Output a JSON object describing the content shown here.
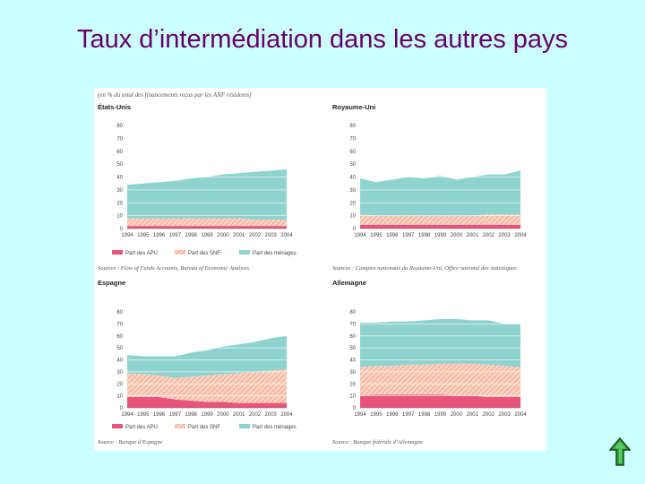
{
  "slide": {
    "title": "Taux d’intermédiation dans les autres pays"
  },
  "figure": {
    "subtitle": "(en % du total des financements reçus par les ANF résidents)"
  },
  "colors": {
    "apu": "#e8547a",
    "snf_fill": "#fbd3c2",
    "snf_hatch": "#e8896a",
    "menages": "#8ed3d0",
    "background": "#ccffff",
    "title": "#660066"
  },
  "legend": {
    "apu": "Part des APU",
    "snf": "Part des SNF",
    "menages": "Part des ménages"
  },
  "chart_data": [
    {
      "type": "area",
      "title": "États-Unis",
      "x": [
        "1994",
        "1995",
        "1996",
        "1997",
        "1998",
        "1999",
        "2000",
        "2001",
        "2002",
        "2003",
        "2004"
      ],
      "ylim": [
        0,
        80
      ],
      "yticks": [
        0,
        10,
        20,
        30,
        40,
        50,
        60,
        70,
        80
      ],
      "stacked": true,
      "series": [
        {
          "name": "Part des APU",
          "values": [
            2,
            2,
            2,
            2,
            2,
            2,
            2,
            2,
            2,
            2,
            2
          ]
        },
        {
          "name": "Part des SNF",
          "values": [
            6,
            6,
            6,
            6,
            6,
            6,
            6,
            6,
            5,
            5,
            5
          ]
        },
        {
          "name": "Part des ménages",
          "values": [
            26,
            27,
            28,
            29,
            31,
            32,
            34,
            35,
            37,
            38,
            39
          ]
        }
      ],
      "grid": true,
      "source": "Sources : Flow of Funds Accounts, Bureau of Economic Analysis"
    },
    {
      "type": "area",
      "title": "Royaume-Uni",
      "x": [
        "1994",
        "1995",
        "1996",
        "1997",
        "1998",
        "1999",
        "2000",
        "2001",
        "2002",
        "2003",
        "2004"
      ],
      "ylim": [
        0,
        80
      ],
      "yticks": [
        0,
        10,
        20,
        30,
        40,
        50,
        60,
        70,
        80
      ],
      "stacked": true,
      "series": [
        {
          "name": "Part des APU",
          "values": [
            3,
            3,
            3,
            3,
            3,
            3,
            3,
            3,
            3,
            3,
            3
          ]
        },
        {
          "name": "Part des SNF",
          "values": [
            8,
            7,
            7,
            7,
            7,
            7,
            7,
            7,
            8,
            8,
            8
          ]
        },
        {
          "name": "Part des ménages",
          "values": [
            28,
            26,
            28,
            30,
            29,
            31,
            28,
            30,
            31,
            31,
            34
          ]
        }
      ],
      "grid": true,
      "source": "Sources : Comptes nationaux du Royaume-Uni, Office national des statistiques"
    },
    {
      "type": "area",
      "title": "Espagne",
      "x": [
        "1994",
        "1995",
        "1996",
        "1997",
        "1998",
        "1999",
        "2000",
        "2001",
        "2002",
        "2003",
        "2004"
      ],
      "ylim": [
        0,
        80
      ],
      "yticks": [
        0,
        10,
        20,
        30,
        40,
        50,
        60,
        70,
        80
      ],
      "stacked": true,
      "series": [
        {
          "name": "Part des APU",
          "values": [
            9,
            9,
            9,
            7,
            6,
            5,
            5,
            4,
            4,
            4,
            4
          ]
        },
        {
          "name": "Part des SNF",
          "values": [
            20,
            19,
            18,
            18,
            20,
            22,
            23,
            25,
            26,
            27,
            28
          ]
        },
        {
          "name": "Part des ménages",
          "values": [
            15,
            15,
            16,
            18,
            20,
            21,
            23,
            24,
            25,
            27,
            28
          ]
        }
      ],
      "grid": true,
      "source": "Source : Banque d’Espagne"
    },
    {
      "type": "area",
      "title": "Allemagne",
      "x": [
        "1994",
        "1995",
        "1996",
        "1997",
        "1998",
        "1999",
        "2000",
        "2001",
        "2002",
        "2003",
        "2004"
      ],
      "ylim": [
        0,
        80
      ],
      "yticks": [
        0,
        10,
        20,
        30,
        40,
        50,
        60,
        70,
        80
      ],
      "stacked": true,
      "series": [
        {
          "name": "Part des APU",
          "values": [
            10,
            11,
            11,
            11,
            11,
            11,
            10,
            10,
            9,
            9,
            9
          ]
        },
        {
          "name": "Part des SNF",
          "values": [
            24,
            24,
            24,
            25,
            25,
            26,
            27,
            27,
            27,
            26,
            25
          ]
        },
        {
          "name": "Part des ménages",
          "values": [
            37,
            36,
            37,
            36,
            37,
            37,
            37,
            36,
            37,
            35,
            36
          ]
        }
      ],
      "grid": true,
      "source": "Source : Banque fédérale d’Allemagne"
    }
  ]
}
